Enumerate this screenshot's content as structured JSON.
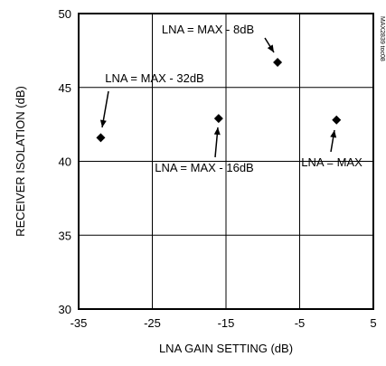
{
  "chart_data": {
    "type": "scatter",
    "xlabel": "LNA GAIN SETTING (dB)",
    "ylabel": "RECEIVER ISOLATION (dB)",
    "xlim": [
      -35,
      5
    ],
    "ylim": [
      30,
      50
    ],
    "xticks": [
      "-35",
      "-25",
      "-15",
      "-5",
      "5"
    ],
    "xtick_values": [
      -35,
      -25,
      -15,
      -5,
      5
    ],
    "yticks": [
      "30",
      "35",
      "40",
      "45",
      "50"
    ],
    "ytick_values": [
      30,
      35,
      40,
      45,
      50
    ],
    "grid": true,
    "marker": "diamond",
    "points": [
      {
        "x": -32,
        "y": 41.6,
        "label": "LNA = MAX - 32dB"
      },
      {
        "x": -16,
        "y": 42.9,
        "label": "LNA = MAX - 16dB"
      },
      {
        "x": -8,
        "y": 46.7,
        "label": "LNA = MAX - 8dB"
      },
      {
        "x": 0,
        "y": 42.8,
        "label": "LNA = MAX"
      }
    ],
    "side_label": "MAX2839 toc08"
  }
}
